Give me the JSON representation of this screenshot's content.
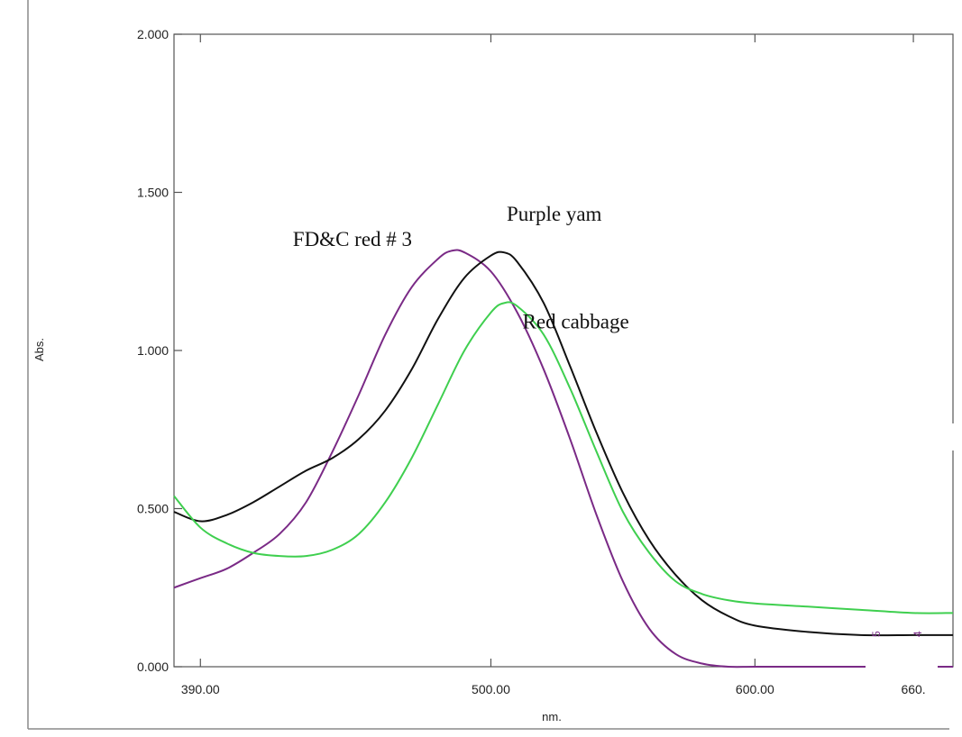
{
  "chart_data": {
    "type": "line",
    "title": "",
    "xlabel": "nm.",
    "ylabel": "Abs.",
    "xlim": [
      380,
      675
    ],
    "ylim": [
      0,
      2.0
    ],
    "x_ticks": [
      {
        "value": 390,
        "label": "390.00"
      },
      {
        "value": 500,
        "label": "500.00"
      },
      {
        "value": 600,
        "label": "600.00"
      },
      {
        "value": 660,
        "label": "660."
      }
    ],
    "y_ticks": [
      {
        "value": 0.0,
        "label": "0.000"
      },
      {
        "value": 0.5,
        "label": "0.500"
      },
      {
        "value": 1.0,
        "label": "1.000"
      },
      {
        "value": 1.5,
        "label": "1.500"
      },
      {
        "value": 2.0,
        "label": "2.000"
      }
    ],
    "grid": false,
    "series": [
      {
        "name": "FD&C red # 3",
        "color": "#7a2a86",
        "points": [
          [
            380,
            0.25
          ],
          [
            390,
            0.28
          ],
          [
            400,
            0.31
          ],
          [
            410,
            0.36
          ],
          [
            420,
            0.42
          ],
          [
            430,
            0.52
          ],
          [
            440,
            0.68
          ],
          [
            450,
            0.86
          ],
          [
            460,
            1.05
          ],
          [
            470,
            1.2
          ],
          [
            480,
            1.29
          ],
          [
            485,
            1.315
          ],
          [
            490,
            1.31
          ],
          [
            500,
            1.25
          ],
          [
            510,
            1.12
          ],
          [
            520,
            0.94
          ],
          [
            530,
            0.72
          ],
          [
            540,
            0.48
          ],
          [
            550,
            0.27
          ],
          [
            560,
            0.12
          ],
          [
            570,
            0.04
          ],
          [
            580,
            0.01
          ],
          [
            590,
            0.0
          ],
          [
            600,
            0.0
          ],
          [
            620,
            0.0
          ],
          [
            640,
            0.0
          ],
          [
            660,
            0.0
          ],
          [
            675,
            0.0
          ]
        ]
      },
      {
        "name": "Purple yam",
        "color": "#111111",
        "points": [
          [
            380,
            0.49
          ],
          [
            390,
            0.46
          ],
          [
            400,
            0.48
          ],
          [
            410,
            0.52
          ],
          [
            420,
            0.57
          ],
          [
            430,
            0.62
          ],
          [
            440,
            0.66
          ],
          [
            450,
            0.72
          ],
          [
            460,
            0.81
          ],
          [
            470,
            0.94
          ],
          [
            480,
            1.1
          ],
          [
            490,
            1.23
          ],
          [
            500,
            1.3
          ],
          [
            505,
            1.31
          ],
          [
            510,
            1.28
          ],
          [
            520,
            1.15
          ],
          [
            530,
            0.95
          ],
          [
            540,
            0.74
          ],
          [
            550,
            0.55
          ],
          [
            560,
            0.4
          ],
          [
            570,
            0.29
          ],
          [
            580,
            0.21
          ],
          [
            590,
            0.16
          ],
          [
            600,
            0.13
          ],
          [
            620,
            0.11
          ],
          [
            640,
            0.1
          ],
          [
            660,
            0.1
          ],
          [
            675,
            0.1
          ]
        ]
      },
      {
        "name": "Red cabbage",
        "color": "#3fcf4f",
        "points": [
          [
            380,
            0.54
          ],
          [
            390,
            0.44
          ],
          [
            400,
            0.39
          ],
          [
            410,
            0.36
          ],
          [
            420,
            0.35
          ],
          [
            430,
            0.35
          ],
          [
            440,
            0.37
          ],
          [
            450,
            0.42
          ],
          [
            460,
            0.52
          ],
          [
            470,
            0.66
          ],
          [
            480,
            0.83
          ],
          [
            490,
            1.0
          ],
          [
            500,
            1.12
          ],
          [
            505,
            1.15
          ],
          [
            510,
            1.14
          ],
          [
            520,
            1.05
          ],
          [
            530,
            0.88
          ],
          [
            540,
            0.68
          ],
          [
            550,
            0.49
          ],
          [
            560,
            0.36
          ],
          [
            570,
            0.27
          ],
          [
            580,
            0.23
          ],
          [
            590,
            0.21
          ],
          [
            600,
            0.2
          ],
          [
            620,
            0.19
          ],
          [
            640,
            0.18
          ],
          [
            660,
            0.17
          ],
          [
            675,
            0.17
          ]
        ]
      }
    ],
    "annotations": [
      {
        "text": "Purple yam",
        "x": 506,
        "y": 1.41
      },
      {
        "text": "FD&C red # 3",
        "x": 425,
        "y": 1.33
      },
      {
        "text": "Red cabbage",
        "x": 512,
        "y": 1.07
      }
    ]
  }
}
